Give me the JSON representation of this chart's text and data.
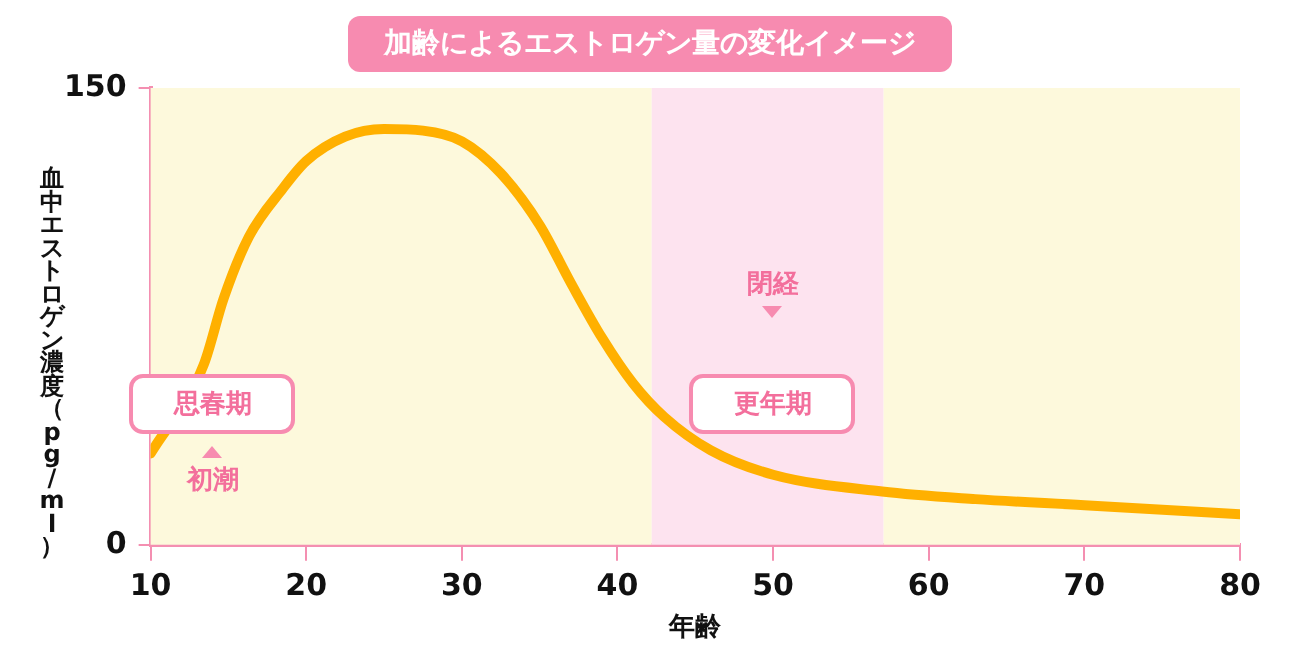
{
  "chart_data": {
    "type": "line",
    "title": "加齢によるエストロゲン量の変化イメージ",
    "xlabel": "年齢",
    "ylabel": "血中エストロゲン濃度（pg/ml）",
    "x": [
      10,
      13.4,
      14.7,
      16.3,
      18.5,
      20,
      22.5,
      25,
      27.5,
      30,
      32.5,
      35,
      37,
      39,
      41,
      43,
      46,
      50,
      57,
      63,
      70,
      80
    ],
    "series": [
      {
        "color": "#ffb000",
        "values": [
          30,
          59,
          81,
          101,
          117,
          126,
          134,
          136.5,
          136,
          132.5,
          122,
          105,
          86,
          68,
          53,
          42,
          31,
          23,
          17.5,
          15,
          13,
          10
        ]
      }
    ],
    "xlim": [
      10,
      80
    ],
    "xticks": [
      10,
      20,
      30,
      40,
      50,
      60,
      70,
      80
    ],
    "ylim": [
      0,
      150
    ],
    "yticks": [
      0,
      150
    ],
    "bands": [
      {
        "axis": "x",
        "from": 10,
        "to": 42.2,
        "color": "#fdf9dc"
      },
      {
        "axis": "x",
        "from": 42.2,
        "to": 57.1,
        "color": "#fde3ef"
      },
      {
        "axis": "x",
        "from": 57.1,
        "to": 80,
        "color": "#fdf9dc"
      }
    ],
    "annotations": [
      "思春期",
      "初潮",
      "更年期",
      "閉経"
    ],
    "grid": false,
    "legend": false,
    "marker": "none",
    "line_style": "solid"
  }
}
